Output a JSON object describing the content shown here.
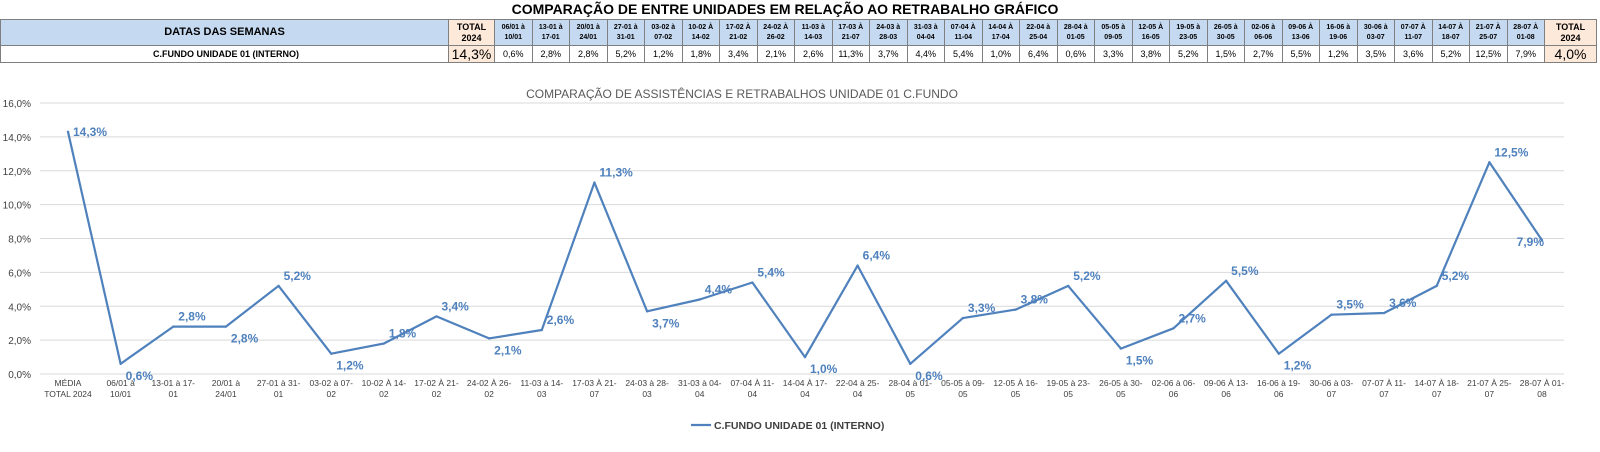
{
  "sheet_title": "COMPARAÇÃO DE ENTRE UNIDADES EM RELAÇÃO AO RETRABALHO GRÁFICO",
  "table": {
    "header_label": "DATAS DAS SEMANAS",
    "total_header": [
      "TOTAL",
      "2024"
    ],
    "weeks": [
      [
        "06/01 à",
        "10/01"
      ],
      [
        "13-01 à",
        "17-01"
      ],
      [
        "20/01 à",
        "24/01"
      ],
      [
        "27-01 à",
        "31-01"
      ],
      [
        "03-02 à",
        "07-02"
      ],
      [
        "10-02 À",
        "14-02"
      ],
      [
        "17-02 À",
        "21-02"
      ],
      [
        "24-02 À",
        "26-02"
      ],
      [
        "11-03 à",
        "14-03"
      ],
      [
        "17-03 À",
        "21-07"
      ],
      [
        "24-03 à",
        "28-03"
      ],
      [
        "31-03 à",
        "04-04"
      ],
      [
        "07-04 À",
        "11-04"
      ],
      [
        "14-04 À",
        "17-04"
      ],
      [
        "22-04 à",
        "25-04"
      ],
      [
        "28-04 à",
        "01-05"
      ],
      [
        "05-05 à",
        "09-05"
      ],
      [
        "12-05 À",
        "16-05"
      ],
      [
        "19-05 à",
        "23-05"
      ],
      [
        "26-05 à",
        "30-05"
      ],
      [
        "02-06 à",
        "06-06"
      ],
      [
        "09-06 À",
        "13-06"
      ],
      [
        "16-06 à",
        "19-06"
      ],
      [
        "30-06 à",
        "03-07"
      ],
      [
        "07-07 À",
        "11-07"
      ],
      [
        "14-07 À",
        "18-07"
      ],
      [
        "21-07 À",
        "25-07"
      ],
      [
        "28-07 À",
        "01-08"
      ]
    ],
    "total_header_right": [
      "TOTAL",
      "2024"
    ],
    "row": {
      "label": "C.FUNDO UNIDADE 01 (INTERNO)",
      "total_left": "14,3%",
      "values": [
        "0,6%",
        "2,8%",
        "2,8%",
        "5,2%",
        "1,2%",
        "1,8%",
        "3,4%",
        "2,1%",
        "2,6%",
        "11,3%",
        "3,7%",
        "4,4%",
        "5,4%",
        "1,0%",
        "6,4%",
        "0,6%",
        "3,3%",
        "3,8%",
        "5,2%",
        "1,5%",
        "2,7%",
        "5,5%",
        "1,2%",
        "3,5%",
        "3,6%",
        "5,2%",
        "12,5%",
        "7,9%"
      ],
      "total_right": "4,0%"
    }
  },
  "chart_data": {
    "type": "line",
    "title": "COMPARAÇÃO DE ASSISTÊNCIAS E RETRABALHOS UNIDADE 01 C.FUNDO",
    "categories": [
      [
        "MÉDIA",
        "TOTAL 2024"
      ],
      [
        "06/01 à",
        "10/01"
      ],
      [
        "13-01 à 17-",
        "01"
      ],
      [
        "20/01 à",
        "24/01"
      ],
      [
        "27-01 à 31-",
        "01"
      ],
      [
        "03-02 à 07-",
        "02"
      ],
      [
        "10-02 À 14-",
        "02"
      ],
      [
        "17-02 À 21-",
        "02"
      ],
      [
        "24-02 À 26-",
        "02"
      ],
      [
        "11-03 à 14-",
        "03"
      ],
      [
        "17-03 À 21-",
        "07"
      ],
      [
        "24-03 à 28-",
        "03"
      ],
      [
        "31-03 à 04-",
        "04"
      ],
      [
        "07-04 À 11-",
        "04"
      ],
      [
        "14-04 À 17-",
        "04"
      ],
      [
        "22-04 à 25-",
        "04"
      ],
      [
        "28-04 à 01-",
        "05"
      ],
      [
        "05-05 à 09-",
        "05"
      ],
      [
        "12-05 À 16-",
        "05"
      ],
      [
        "19-05 à 23-",
        "05"
      ],
      [
        "26-05 à 30-",
        "05"
      ],
      [
        "02-06 à 06-",
        "06"
      ],
      [
        "09-06 À 13-",
        "06"
      ],
      [
        "16-06 à 19-",
        "06"
      ],
      [
        "30-06 à 03-",
        "07"
      ],
      [
        "07-07 À 11-",
        "07"
      ],
      [
        "14-07 À 18-",
        "07"
      ],
      [
        "21-07 À 25-",
        "07"
      ],
      [
        "28-07 À 01-",
        "08"
      ]
    ],
    "series": [
      {
        "name": "C.FUNDO UNIDADE 01 (INTERNO)",
        "color": "#4f81bd",
        "values": [
          14.3,
          0.6,
          2.8,
          2.8,
          5.2,
          1.2,
          1.8,
          3.4,
          2.1,
          2.6,
          11.3,
          3.7,
          4.4,
          5.4,
          1.0,
          6.4,
          0.6,
          3.3,
          3.8,
          5.2,
          1.5,
          2.7,
          5.5,
          1.2,
          3.5,
          3.6,
          5.2,
          12.5,
          7.9
        ],
        "data_labels": [
          "14,3%",
          "0,6%",
          "2,8%",
          "2,8%",
          "5,2%",
          "1,2%",
          "1,8%",
          "3,4%",
          "2,1%",
          "2,6%",
          "11,3%",
          "3,7%",
          "4,4%",
          "5,4%",
          "1,0%",
          "6,4%",
          "0,6%",
          "3,3%",
          "3,8%",
          "5,2%",
          "1,5%",
          "2,7%",
          "5,5%",
          "1,2%",
          "3,5%",
          "3,6%",
          "5,2%",
          "12,5%",
          "7,9%"
        ]
      }
    ],
    "y_ticks": [
      0,
      2,
      4,
      6,
      8,
      10,
      12,
      14,
      16
    ],
    "y_tick_labels": [
      "0,0%",
      "2,0%",
      "4,0%",
      "6,0%",
      "8,0%",
      "10,0%",
      "12,0%",
      "14,0%",
      "16,0%"
    ],
    "ylim": [
      0,
      16
    ],
    "grid": true,
    "legend_placement": "bottom",
    "label_color": "#4f81bd"
  }
}
